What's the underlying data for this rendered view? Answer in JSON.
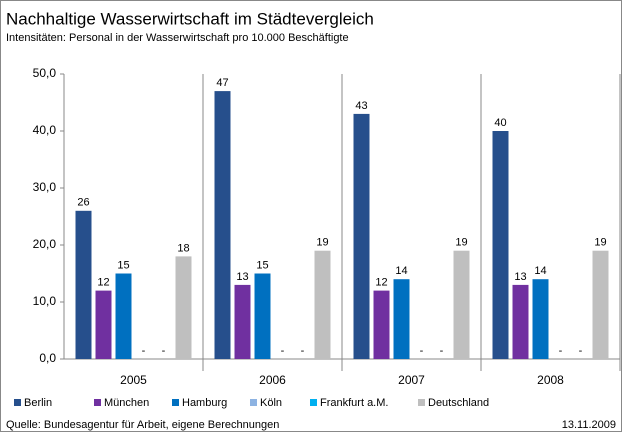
{
  "chart_data": {
    "type": "bar",
    "title": "Nachhaltige Wasserwirtschaft im Städtevergleich",
    "subtitle": "Intensitäten: Personal in der Wasserwirtschaft pro 10.000 Beschäftigte",
    "categories": [
      "2005",
      "2006",
      "2007",
      "2008"
    ],
    "series": [
      {
        "name": "Berlin",
        "color": "#264f8c",
        "values": [
          26,
          47,
          43,
          40
        ]
      },
      {
        "name": "München",
        "color": "#7030a0",
        "values": [
          12,
          13,
          12,
          13
        ]
      },
      {
        "name": "Hamburg",
        "color": "#0070c0",
        "values": [
          15,
          15,
          14,
          14
        ]
      },
      {
        "name": "Köln",
        "color": "#8db3e2",
        "values": [
          null,
          null,
          null,
          null
        ],
        "value_labels": [
          "-",
          "-",
          "-",
          "-"
        ]
      },
      {
        "name": "Frankfurt a.M.",
        "color": "#00b0f0",
        "values": [
          null,
          null,
          null,
          null
        ],
        "value_labels": [
          "-",
          "-",
          "-",
          "-"
        ]
      },
      {
        "name": "Deutschland",
        "color": "#bfbfbf",
        "values": [
          18,
          19,
          19,
          19
        ]
      }
    ],
    "ylim": [
      0,
      50
    ],
    "yticks": [
      {
        "value": 0,
        "label": "0,0"
      },
      {
        "value": 10,
        "label": "10,0"
      },
      {
        "value": 20,
        "label": "20,0"
      },
      {
        "value": 30,
        "label": "30,0"
      },
      {
        "value": 40,
        "label": "40,0"
      },
      {
        "value": 50,
        "label": "50,0"
      }
    ],
    "grid": false,
    "source": "Quelle: Bundesagentur für Arbeit, eigene Berechnungen",
    "date": "13.11.2009"
  }
}
